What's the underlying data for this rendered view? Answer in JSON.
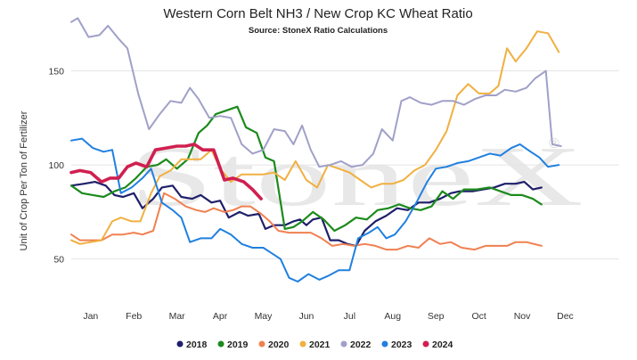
{
  "chart_data": {
    "type": "line",
    "title": "Western Corn Belt NH3 / New Crop KC Wheat Ratio",
    "subtitle": "Source: StoneX Ratio Calculations",
    "ylabel": "Unit of Crop Per Ton of Fertilizer",
    "xlabel": "",
    "watermark": "StoneX",
    "watermark_mark": "®",
    "ylim": [
      20,
      182
    ],
    "yticks": [
      50,
      100,
      150
    ],
    "x_range": [
      0,
      12.7
    ],
    "categories": [
      "Jan",
      "Feb",
      "Mar",
      "Apr",
      "May",
      "Jun",
      "Jul",
      "Aug",
      "Sep",
      "Oct",
      "Nov",
      "Dec"
    ],
    "legend_position": "bottom",
    "grid": "horizontal",
    "series": [
      {
        "name": "2018",
        "color": "#1f1f6b",
        "width": 2.2,
        "points": [
          [
            0,
            89
          ],
          [
            0.3,
            90
          ],
          [
            0.55,
            91
          ],
          [
            0.8,
            89
          ],
          [
            1.0,
            84
          ],
          [
            1.2,
            83
          ],
          [
            1.45,
            85
          ],
          [
            1.65,
            77
          ],
          [
            1.9,
            82
          ],
          [
            2.1,
            88
          ],
          [
            2.35,
            89
          ],
          [
            2.55,
            83
          ],
          [
            2.8,
            82
          ],
          [
            3.0,
            84
          ],
          [
            3.25,
            80
          ],
          [
            3.45,
            81
          ],
          [
            3.65,
            72
          ],
          [
            3.9,
            75
          ],
          [
            4.1,
            73
          ],
          [
            4.35,
            74
          ],
          [
            4.5,
            66
          ],
          [
            4.7,
            68
          ],
          [
            4.95,
            68
          ],
          [
            5.15,
            70
          ],
          [
            5.3,
            71
          ],
          [
            5.45,
            68
          ],
          [
            5.6,
            71
          ],
          [
            5.8,
            72
          ],
          [
            6.0,
            60
          ],
          [
            6.2,
            60
          ],
          [
            6.4,
            58
          ],
          [
            6.6,
            57
          ],
          [
            6.8,
            65
          ],
          [
            7.05,
            70
          ],
          [
            7.3,
            73
          ],
          [
            7.55,
            77
          ],
          [
            7.8,
            76
          ],
          [
            8.05,
            80
          ],
          [
            8.3,
            80
          ],
          [
            8.55,
            82
          ],
          [
            8.8,
            85
          ],
          [
            9.0,
            86
          ],
          [
            9.3,
            86
          ],
          [
            9.55,
            87
          ],
          [
            9.8,
            88
          ],
          [
            10.05,
            90
          ],
          [
            10.3,
            90
          ],
          [
            10.5,
            91
          ],
          [
            10.7,
            87
          ],
          [
            10.9,
            88
          ]
        ]
      },
      {
        "name": "2019",
        "color": "#1c8a1c",
        "width": 2.2,
        "points": [
          [
            0,
            89
          ],
          [
            0.25,
            85
          ],
          [
            0.5,
            84
          ],
          [
            0.75,
            83
          ],
          [
            1.0,
            86
          ],
          [
            1.25,
            88
          ],
          [
            1.5,
            93
          ],
          [
            1.75,
            99
          ],
          [
            2.0,
            100
          ],
          [
            2.2,
            103
          ],
          [
            2.45,
            98
          ],
          [
            2.7,
            103
          ],
          [
            2.95,
            117
          ],
          [
            3.15,
            121
          ],
          [
            3.35,
            127
          ],
          [
            3.6,
            129
          ],
          [
            3.85,
            131
          ],
          [
            4.05,
            120
          ],
          [
            4.3,
            117
          ],
          [
            4.5,
            104
          ],
          [
            4.7,
            102
          ],
          [
            4.95,
            66
          ],
          [
            5.15,
            67
          ],
          [
            5.35,
            70
          ],
          [
            5.6,
            75
          ],
          [
            5.85,
            71
          ],
          [
            6.1,
            65
          ],
          [
            6.35,
            68
          ],
          [
            6.6,
            72
          ],
          [
            6.85,
            71
          ],
          [
            7.1,
            76
          ],
          [
            7.35,
            77
          ],
          [
            7.6,
            79
          ],
          [
            7.85,
            77
          ],
          [
            8.1,
            76
          ],
          [
            8.35,
            78
          ],
          [
            8.6,
            86
          ],
          [
            8.85,
            82
          ],
          [
            9.1,
            87
          ],
          [
            9.4,
            87
          ],
          [
            9.7,
            88
          ],
          [
            9.95,
            86
          ],
          [
            10.2,
            84
          ],
          [
            10.45,
            84
          ],
          [
            10.7,
            82
          ],
          [
            10.9,
            79
          ]
        ]
      },
      {
        "name": "2020",
        "color": "#f08050",
        "width": 2.0,
        "points": [
          [
            0,
            63
          ],
          [
            0.2,
            60
          ],
          [
            0.45,
            60
          ],
          [
            0.7,
            60
          ],
          [
            0.95,
            63
          ],
          [
            1.2,
            63
          ],
          [
            1.45,
            64
          ],
          [
            1.65,
            63
          ],
          [
            1.9,
            65
          ],
          [
            2.15,
            85
          ],
          [
            2.4,
            82
          ],
          [
            2.65,
            78
          ],
          [
            2.9,
            76
          ],
          [
            3.1,
            75
          ],
          [
            3.3,
            77
          ],
          [
            3.55,
            75
          ],
          [
            3.75,
            76
          ],
          [
            3.95,
            78
          ],
          [
            4.15,
            78
          ],
          [
            4.4,
            74
          ],
          [
            4.6,
            70
          ],
          [
            4.8,
            65
          ],
          [
            5.05,
            64
          ],
          [
            5.3,
            64
          ],
          [
            5.55,
            64
          ],
          [
            5.8,
            61
          ],
          [
            6.05,
            57
          ],
          [
            6.3,
            58
          ],
          [
            6.55,
            57
          ],
          [
            6.8,
            58
          ],
          [
            7.05,
            57
          ],
          [
            7.3,
            55
          ],
          [
            7.55,
            55
          ],
          [
            7.8,
            57
          ],
          [
            8.05,
            56
          ],
          [
            8.3,
            61
          ],
          [
            8.55,
            58
          ],
          [
            8.8,
            59
          ],
          [
            9.05,
            56
          ],
          [
            9.35,
            55
          ],
          [
            9.6,
            57
          ],
          [
            9.85,
            57
          ],
          [
            10.1,
            57
          ],
          [
            10.3,
            59
          ],
          [
            10.55,
            59
          ],
          [
            10.9,
            57
          ]
        ]
      },
      {
        "name": "2021",
        "color": "#f0b040",
        "width": 2.0,
        "points": [
          [
            0,
            60
          ],
          [
            0.2,
            58
          ],
          [
            0.45,
            59
          ],
          [
            0.7,
            60
          ],
          [
            0.95,
            70
          ],
          [
            1.15,
            72
          ],
          [
            1.4,
            70
          ],
          [
            1.6,
            70
          ],
          [
            1.85,
            85
          ],
          [
            2.05,
            94
          ],
          [
            2.3,
            97
          ],
          [
            2.55,
            103
          ],
          [
            2.75,
            103
          ],
          [
            3.0,
            103
          ],
          [
            3.25,
            108
          ],
          [
            3.45,
            98
          ],
          [
            3.7,
            91
          ],
          [
            3.95,
            95
          ],
          [
            4.2,
            95
          ],
          [
            4.45,
            95
          ],
          [
            4.7,
            96
          ],
          [
            4.95,
            92
          ],
          [
            5.2,
            102
          ],
          [
            5.45,
            92
          ],
          [
            5.7,
            88
          ],
          [
            5.95,
            100
          ],
          [
            6.2,
            98
          ],
          [
            6.45,
            96
          ],
          [
            6.7,
            92
          ],
          [
            6.95,
            88
          ],
          [
            7.2,
            90
          ],
          [
            7.45,
            90
          ],
          [
            7.7,
            92
          ],
          [
            7.95,
            97
          ],
          [
            8.2,
            100
          ],
          [
            8.45,
            108
          ],
          [
            8.7,
            118
          ],
          [
            8.95,
            137
          ],
          [
            9.2,
            143
          ],
          [
            9.45,
            138
          ],
          [
            9.7,
            138
          ],
          [
            9.9,
            142
          ],
          [
            10.1,
            162
          ],
          [
            10.3,
            155
          ],
          [
            10.55,
            162
          ],
          [
            10.8,
            171
          ],
          [
            11.05,
            170
          ],
          [
            11.3,
            160
          ]
        ]
      },
      {
        "name": "2022",
        "color": "#a0a0c8",
        "width": 2.0,
        "points": [
          [
            0,
            176
          ],
          [
            0.15,
            178
          ],
          [
            0.4,
            168
          ],
          [
            0.65,
            169
          ],
          [
            0.85,
            174
          ],
          [
            1.1,
            167
          ],
          [
            1.3,
            162
          ],
          [
            1.55,
            138
          ],
          [
            1.8,
            119
          ],
          [
            2.05,
            127
          ],
          [
            2.3,
            134
          ],
          [
            2.55,
            133
          ],
          [
            2.75,
            141
          ],
          [
            2.95,
            135
          ],
          [
            3.2,
            125
          ],
          [
            3.45,
            126
          ],
          [
            3.7,
            125
          ],
          [
            3.95,
            111
          ],
          [
            4.2,
            106
          ],
          [
            4.45,
            108
          ],
          [
            4.7,
            119
          ],
          [
            4.95,
            118
          ],
          [
            5.15,
            111
          ],
          [
            5.35,
            121
          ],
          [
            5.55,
            108
          ],
          [
            5.75,
            99
          ],
          [
            6.0,
            100
          ],
          [
            6.25,
            102
          ],
          [
            6.5,
            99
          ],
          [
            6.75,
            100
          ],
          [
            7.0,
            106
          ],
          [
            7.2,
            119
          ],
          [
            7.45,
            113
          ],
          [
            7.65,
            134
          ],
          [
            7.85,
            136
          ],
          [
            8.1,
            133
          ],
          [
            8.35,
            132
          ],
          [
            8.6,
            134
          ],
          [
            8.85,
            134
          ],
          [
            9.1,
            132
          ],
          [
            9.35,
            135
          ],
          [
            9.6,
            137
          ],
          [
            9.85,
            137
          ],
          [
            10.05,
            140
          ],
          [
            10.3,
            139
          ],
          [
            10.55,
            141
          ],
          [
            10.75,
            146
          ],
          [
            11.0,
            150
          ],
          [
            11.15,
            111
          ],
          [
            11.35,
            110
          ]
        ]
      },
      {
        "name": "2023",
        "color": "#2080e0",
        "width": 2.0,
        "points": [
          [
            0,
            113
          ],
          [
            0.25,
            114
          ],
          [
            0.5,
            109
          ],
          [
            0.75,
            107
          ],
          [
            0.95,
            108
          ],
          [
            1.15,
            85
          ],
          [
            1.4,
            88
          ],
          [
            1.65,
            93
          ],
          [
            1.85,
            98
          ],
          [
            2.1,
            80
          ],
          [
            2.35,
            76
          ],
          [
            2.55,
            72
          ],
          [
            2.75,
            59
          ],
          [
            3.0,
            61
          ],
          [
            3.25,
            61
          ],
          [
            3.45,
            66
          ],
          [
            3.7,
            63
          ],
          [
            3.95,
            58
          ],
          [
            4.2,
            56
          ],
          [
            4.45,
            56
          ],
          [
            4.65,
            53
          ],
          [
            4.85,
            50
          ],
          [
            5.05,
            40
          ],
          [
            5.25,
            38
          ],
          [
            5.5,
            42
          ],
          [
            5.75,
            39
          ],
          [
            5.95,
            41
          ],
          [
            6.2,
            44
          ],
          [
            6.45,
            44
          ],
          [
            6.65,
            61
          ],
          [
            6.9,
            64
          ],
          [
            7.1,
            67
          ],
          [
            7.3,
            61
          ],
          [
            7.5,
            63
          ],
          [
            7.75,
            70
          ],
          [
            8.0,
            80
          ],
          [
            8.25,
            91
          ],
          [
            8.45,
            98
          ],
          [
            8.7,
            99
          ],
          [
            8.95,
            101
          ],
          [
            9.2,
            102
          ],
          [
            9.45,
            104
          ],
          [
            9.7,
            106
          ],
          [
            9.95,
            105
          ],
          [
            10.2,
            109
          ],
          [
            10.4,
            111
          ],
          [
            10.65,
            107
          ],
          [
            10.85,
            104
          ],
          [
            11.05,
            99
          ],
          [
            11.3,
            100
          ]
        ]
      },
      {
        "name": "2024",
        "color": "#d02050",
        "width": 3.6,
        "points": [
          [
            0,
            96
          ],
          [
            0.2,
            97
          ],
          [
            0.45,
            96
          ],
          [
            0.7,
            91
          ],
          [
            0.9,
            93
          ],
          [
            1.1,
            93
          ],
          [
            1.3,
            99
          ],
          [
            1.5,
            101
          ],
          [
            1.75,
            99
          ],
          [
            1.95,
            108
          ],
          [
            2.2,
            109
          ],
          [
            2.45,
            110
          ],
          [
            2.65,
            110
          ],
          [
            2.85,
            111
          ],
          [
            3.05,
            108
          ],
          [
            3.3,
            108
          ],
          [
            3.55,
            92
          ],
          [
            3.75,
            93
          ],
          [
            4.0,
            91
          ],
          [
            4.2,
            87
          ],
          [
            4.4,
            82
          ]
        ]
      }
    ]
  }
}
